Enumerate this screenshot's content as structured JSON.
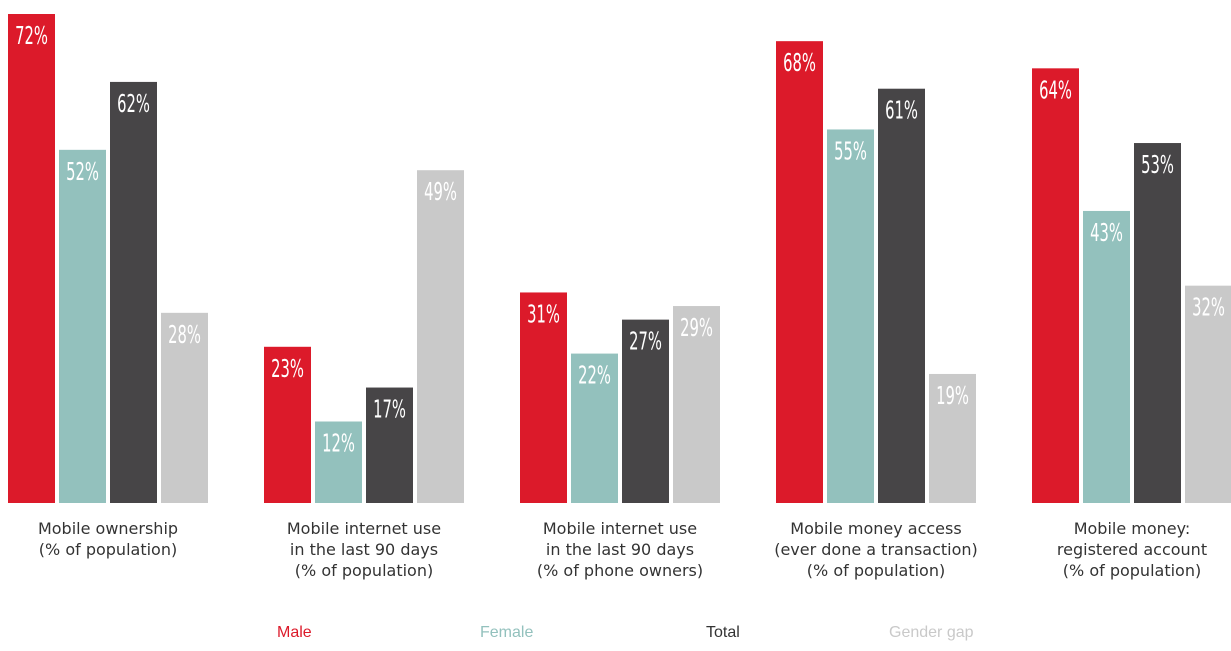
{
  "chart_data": {
    "type": "bar",
    "categories": [
      [
        "Mobile ownership",
        "(% of population)"
      ],
      [
        "Mobile internet use",
        "in the last 90 days",
        "(% of population)"
      ],
      [
        "Mobile internet use",
        "in the last 90 days",
        "(% of phone owners)"
      ],
      [
        "Mobile money access",
        "(ever done a transaction)",
        "(% of population)"
      ],
      [
        "Mobile money:",
        "registered account",
        "(% of population)"
      ]
    ],
    "series": [
      {
        "name": "Male",
        "color": "#dc1a2a",
        "values": [
          72,
          23,
          31,
          68,
          64
        ]
      },
      {
        "name": "Female",
        "color": "#93c1bd",
        "values": [
          52,
          12,
          22,
          55,
          43
        ]
      },
      {
        "name": "Total",
        "color": "#474547",
        "values": [
          62,
          17,
          27,
          61,
          53
        ]
      },
      {
        "name": "Gender gap",
        "color": "#c9c9c9",
        "values": [
          28,
          49,
          29,
          19,
          32
        ]
      }
    ],
    "value_suffix": "%",
    "ylim": [
      0,
      72
    ],
    "legend_position": "bottom",
    "legend_text_colors": [
      "#dc1a2a",
      "#93c1bd",
      "#333333",
      "#c9c9c9"
    ]
  }
}
